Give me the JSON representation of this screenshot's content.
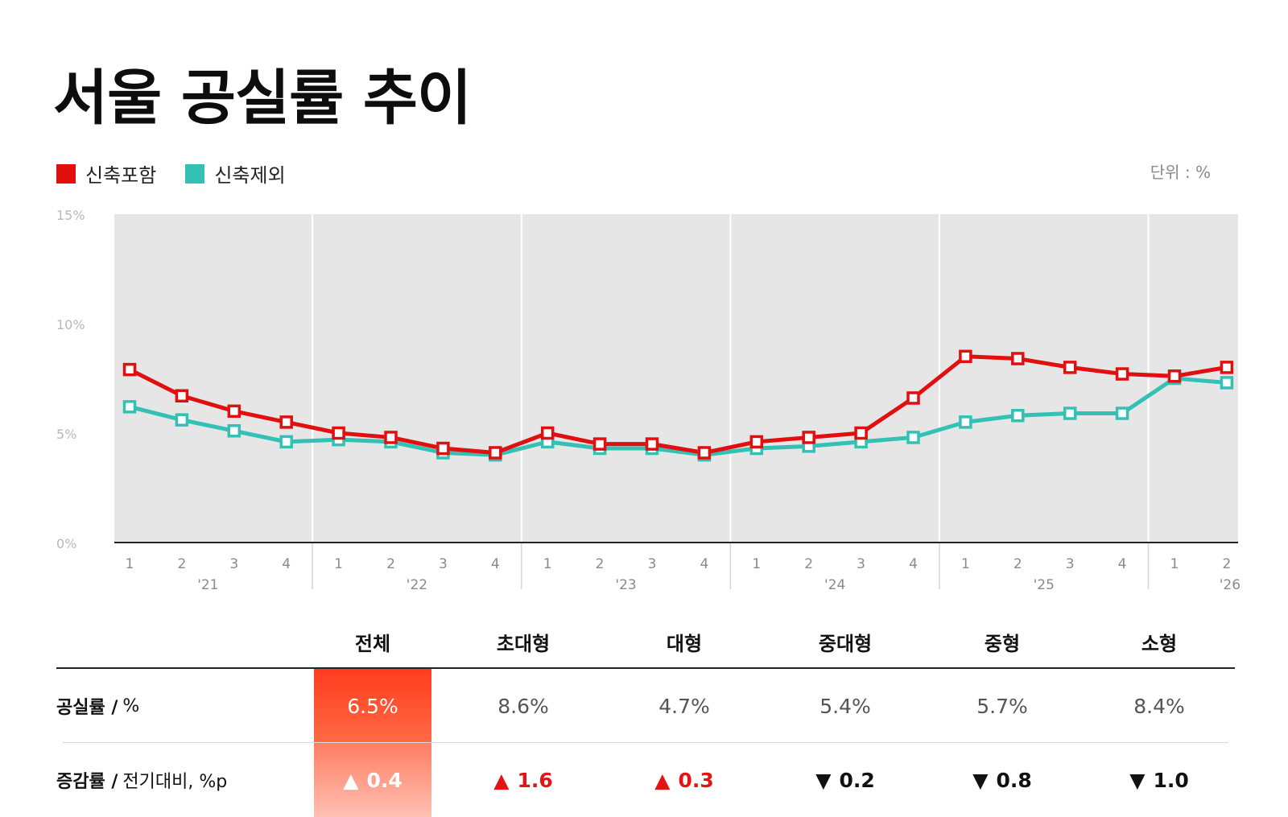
{
  "title": "서울 공실률 추이",
  "legend": [
    {
      "label": "신축포함",
      "color": "#e10f0f"
    },
    {
      "label": "신축제외",
      "color": "#32c1b4"
    }
  ],
  "unit_label": "단위 : %",
  "colors": {
    "plot_bg": "#e6e6e6",
    "axis": "#222222",
    "tick": "#8a8a8a",
    "highlight": "#ff4a25"
  },
  "chart_data": {
    "type": "line",
    "ylim": [
      0,
      15
    ],
    "y_ticks": [
      "0%",
      "5%",
      "10%",
      "15%"
    ],
    "quarters": [
      "1",
      "2",
      "3",
      "4",
      "1",
      "2",
      "3",
      "4",
      "1",
      "2",
      "3",
      "4",
      "1",
      "2",
      "3",
      "4",
      "1",
      "2",
      "3",
      "4",
      "1",
      "2"
    ],
    "years": [
      "'21",
      "'22",
      "'23",
      "'24",
      "'25",
      "'26"
    ],
    "series": [
      {
        "name": "신축포함",
        "values": [
          7.9,
          6.7,
          6.0,
          5.5,
          5.0,
          4.8,
          4.3,
          4.1,
          5.0,
          4.5,
          4.5,
          4.1,
          4.6,
          4.8,
          5.0,
          6.6,
          8.5,
          8.4,
          8.0,
          7.7,
          7.6,
          8.0
        ]
      },
      {
        "name": "신축제외",
        "values": [
          6.2,
          5.6,
          5.1,
          4.6,
          4.7,
          4.6,
          4.1,
          4.0,
          4.6,
          4.3,
          4.3,
          4.0,
          4.3,
          4.4,
          4.6,
          4.8,
          5.5,
          5.8,
          5.9,
          5.9,
          7.5,
          7.3
        ]
      }
    ]
  },
  "table": {
    "columns": [
      "전체",
      "초대형",
      "대형",
      "중대형",
      "중형",
      "소형"
    ],
    "rows": [
      {
        "label_bold": "공실률 /",
        "label_sub": "%",
        "cells": [
          {
            "text": "6.5%"
          },
          {
            "text": "8.6%"
          },
          {
            "text": "4.7%"
          },
          {
            "text": "5.4%"
          },
          {
            "text": "5.7%"
          },
          {
            "text": "8.4%"
          }
        ]
      },
      {
        "label_bold": "증감률 /",
        "label_sub": "전기대비, %p",
        "cells": [
          {
            "dir": "▲",
            "val": "0.4"
          },
          {
            "dir": "▲",
            "val": "1.6"
          },
          {
            "dir": "▲",
            "val": "0.3"
          },
          {
            "dir": "▼",
            "val": "0.2"
          },
          {
            "dir": "▼",
            "val": "0.8"
          },
          {
            "dir": "▼",
            "val": "1.0"
          }
        ]
      }
    ]
  }
}
